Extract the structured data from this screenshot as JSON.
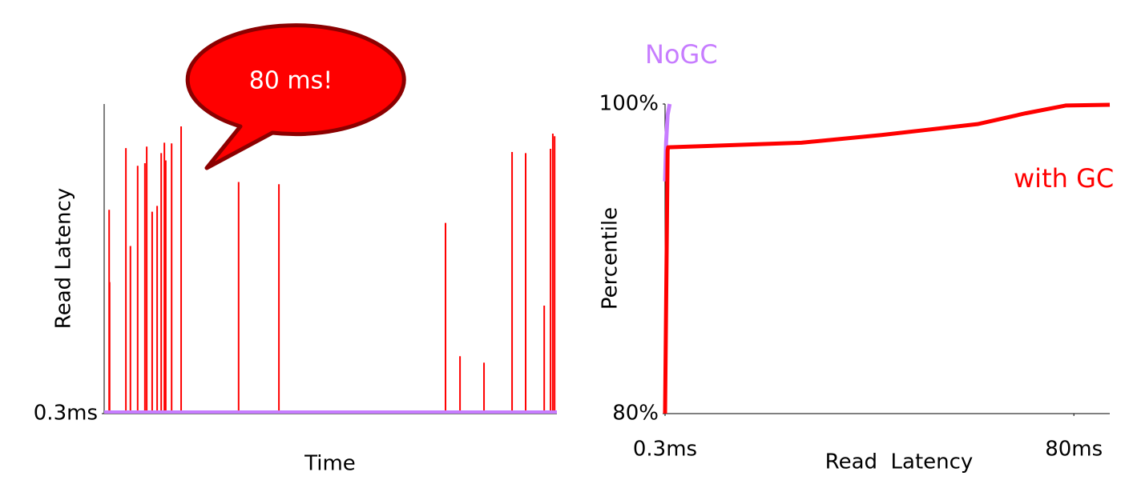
{
  "chart_data": [
    {
      "type": "spike",
      "x_label": "Time",
      "y_label": "Read Latency",
      "annotation": "80 ms!",
      "xlim": [
        0,
        100
      ],
      "ylim": [
        0.3,
        86
      ],
      "yticks": [
        {
          "value": 0.3,
          "label": "0.3ms"
        }
      ],
      "series": [
        {
          "color": "#ff0000",
          "x": [
            1.1,
            1.2,
            4.8,
            5.8,
            7.4,
            9.0,
            9.4,
            10.6,
            11.7,
            12.6,
            13.3,
            13.6,
            14.9,
            17.0,
            29.7,
            38.6,
            75.4,
            78.6,
            83.9,
            90.1,
            93.1,
            97.2,
            98.6,
            99.1,
            99.5
          ],
          "values": [
            56.7,
            36.7,
            73.8,
            46.7,
            68.9,
            69.6,
            74.2,
            56.2,
            57.8,
            72.4,
            75.3,
            70.4,
            75.1,
            79.8,
            64.4,
            63.8,
            53.1,
            16.2,
            14.4,
            72.7,
            72.4,
            30.2,
            73.6,
            77.8,
            77.1
          ]
        },
        {
          "color": "#c77dff",
          "x": [
            0,
            100
          ],
          "values": [
            0.3,
            0.3
          ]
        }
      ]
    },
    {
      "type": "line",
      "x_label": "Read  Latency",
      "y_label": "Percentile",
      "xlim": [
        0.3,
        87
      ],
      "ylim": [
        80,
        100
      ],
      "xticks": [
        {
          "value": 0.3,
          "label": "0.3ms"
        },
        {
          "value": 80,
          "label": "80ms"
        }
      ],
      "yticks": [
        {
          "value": 80,
          "label": "80%"
        },
        {
          "value": 100,
          "label": "100%"
        }
      ],
      "series": [
        {
          "name": "NoGC",
          "color": "#c77dff",
          "x": [
            0.3,
            0.5,
            0.8,
            1.2
          ],
          "values": [
            95,
            97.5,
            99.3,
            100
          ]
        },
        {
          "name": "with GC",
          "color": "#ff0000",
          "x": [
            0.3,
            0.8,
            0.9,
            26.9,
            42.5,
            61.2,
            70.6,
            78.4,
            87
          ],
          "values": [
            80,
            97.0,
            97.2,
            97.5,
            98.0,
            98.7,
            99.4,
            99.9,
            99.95
          ]
        }
      ]
    }
  ]
}
